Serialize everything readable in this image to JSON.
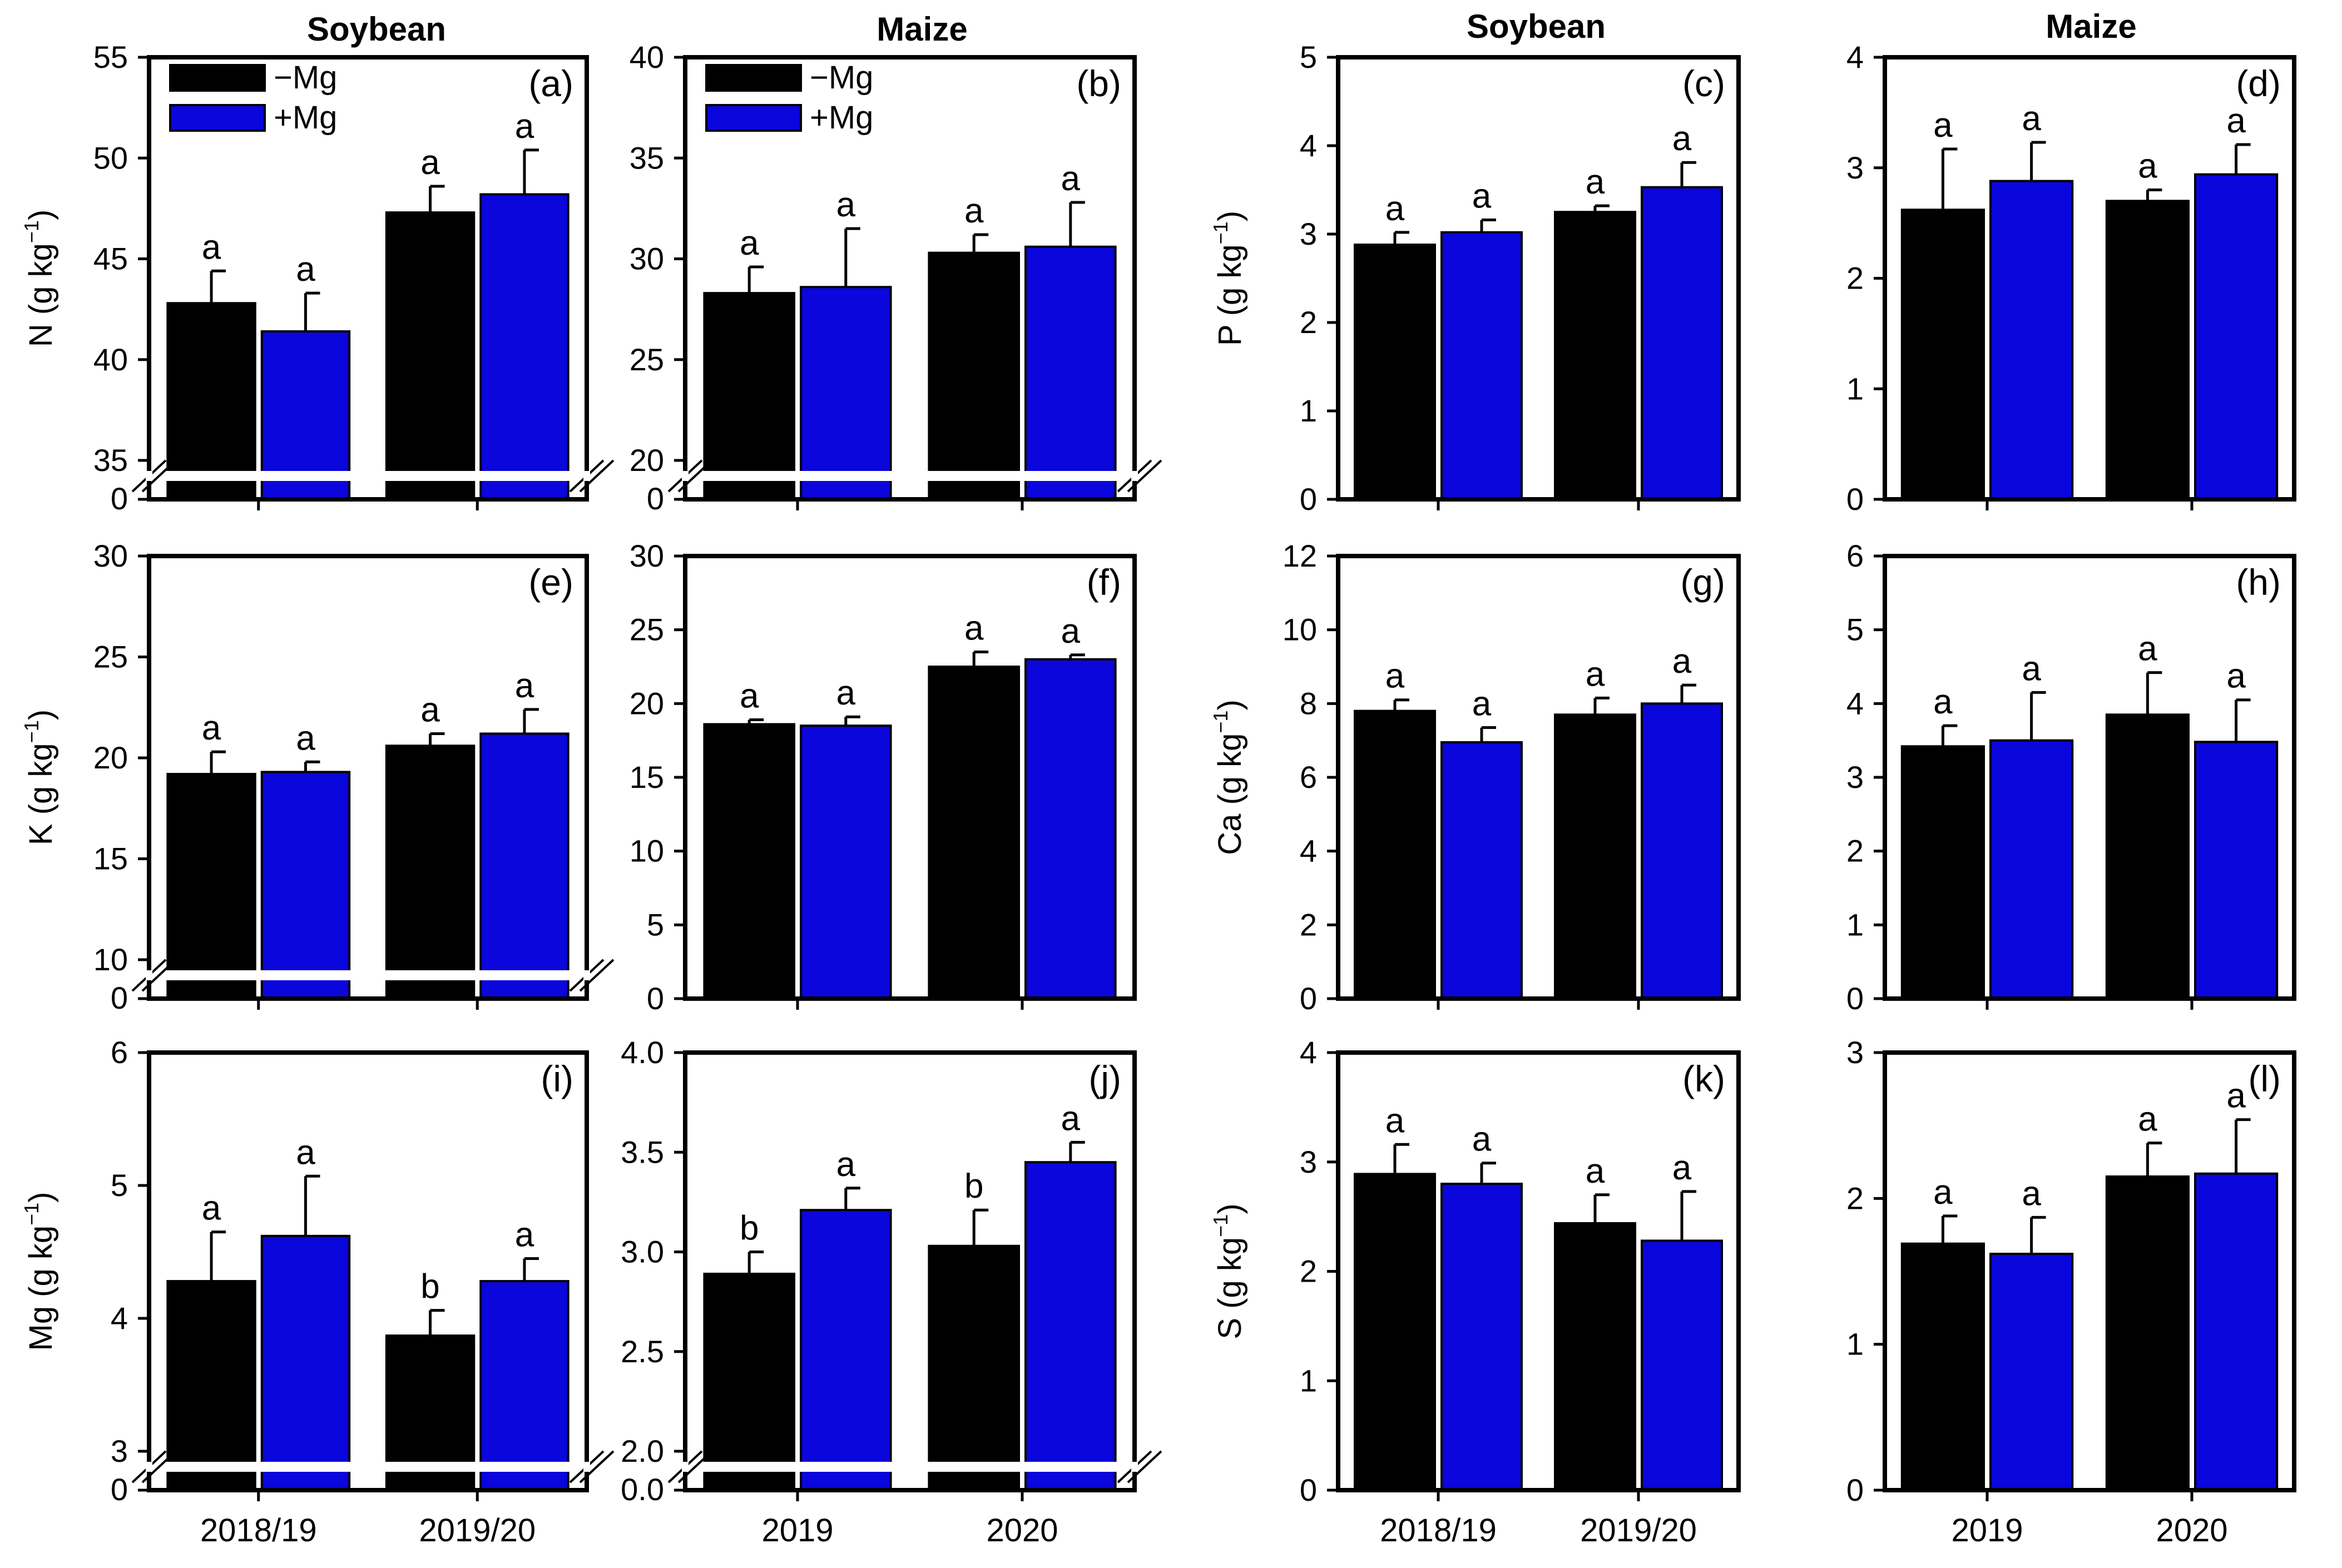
{
  "column_titles": [
    "Soybean",
    "Maize",
    "Soybean",
    "Maize"
  ],
  "colors": {
    "minus_mg": "#000000",
    "plus_mg": "#0a06dc"
  },
  "chart_data": [
    {
      "panel": "(a)",
      "type": "bar",
      "crop": "Soybean",
      "ylabel": "N (g kg",
      "ylabel_sup": "−1",
      "ylabel_close": ")",
      "categories": [
        "2018/19",
        "2019/20"
      ],
      "axis_break": true,
      "ylim": [
        35,
        55
      ],
      "yticks": [
        35,
        40,
        45,
        50,
        55
      ],
      "break_zero_label": "0",
      "legend": true,
      "legend_position": "top-left",
      "series": [
        {
          "name": "−Mg",
          "values": [
            42.8,
            47.3
          ],
          "errors": [
            1.6,
            1.3
          ],
          "letters": [
            "a",
            "a"
          ]
        },
        {
          "name": "+Mg",
          "values": [
            41.4,
            48.2
          ],
          "errors": [
            1.9,
            2.2
          ],
          "letters": [
            "a",
            "a"
          ]
        }
      ]
    },
    {
      "panel": "(b)",
      "type": "bar",
      "crop": "Maize",
      "ylabel": "",
      "ylabel_sup": "",
      "ylabel_close": "",
      "categories": [
        "2019",
        "2020"
      ],
      "axis_break": true,
      "ylim": [
        20,
        40
      ],
      "yticks": [
        20,
        25,
        30,
        35,
        40
      ],
      "break_zero_label": "0",
      "legend": true,
      "legend_position": "top-left",
      "series": [
        {
          "name": "−Mg",
          "values": [
            28.3,
            30.3
          ],
          "errors": [
            1.3,
            0.9
          ],
          "letters": [
            "a",
            "a"
          ]
        },
        {
          "name": "+Mg",
          "values": [
            28.6,
            30.6
          ],
          "errors": [
            2.9,
            2.2
          ],
          "letters": [
            "a",
            "a"
          ]
        }
      ]
    },
    {
      "panel": "(c)",
      "type": "bar",
      "crop": "Soybean",
      "ylabel": "P (g kg",
      "ylabel_sup": "−1",
      "ylabel_close": ")",
      "categories": [
        "2018/19",
        "2019/20"
      ],
      "axis_break": false,
      "ylim": [
        0,
        5
      ],
      "yticks": [
        0,
        1,
        2,
        3,
        4,
        5
      ],
      "legend": false,
      "series": [
        {
          "name": "−Mg",
          "values": [
            2.88,
            3.25
          ],
          "errors": [
            0.14,
            0.07
          ],
          "letters": [
            "a",
            "a"
          ]
        },
        {
          "name": "+Mg",
          "values": [
            3.02,
            3.53
          ],
          "errors": [
            0.14,
            0.28
          ],
          "letters": [
            "a",
            "a"
          ]
        }
      ]
    },
    {
      "panel": "(d)",
      "type": "bar",
      "crop": "Maize",
      "ylabel": "",
      "ylabel_sup": "",
      "ylabel_close": "",
      "categories": [
        "2019",
        "2020"
      ],
      "axis_break": false,
      "ylim": [
        0,
        4
      ],
      "yticks": [
        0,
        1,
        2,
        3,
        4
      ],
      "legend": false,
      "series": [
        {
          "name": "−Mg",
          "values": [
            2.62,
            2.7
          ],
          "errors": [
            0.55,
            0.1
          ],
          "letters": [
            "a",
            "a"
          ]
        },
        {
          "name": "+Mg",
          "values": [
            2.88,
            2.94
          ],
          "errors": [
            0.35,
            0.27
          ],
          "letters": [
            "a",
            "a"
          ]
        }
      ]
    },
    {
      "panel": "(e)",
      "type": "bar",
      "crop": "Soybean",
      "ylabel": "K (g kg",
      "ylabel_sup": "−1",
      "ylabel_close": ")",
      "categories": [
        "2018/19",
        "2019/20"
      ],
      "axis_break": true,
      "ylim": [
        10,
        30
      ],
      "yticks": [
        10,
        15,
        20,
        25,
        30
      ],
      "break_zero_label": "0",
      "legend": false,
      "series": [
        {
          "name": "−Mg",
          "values": [
            19.2,
            20.6
          ],
          "errors": [
            1.1,
            0.6
          ],
          "letters": [
            "a",
            "a"
          ]
        },
        {
          "name": "+Mg",
          "values": [
            19.3,
            21.2
          ],
          "errors": [
            0.5,
            1.2
          ],
          "letters": [
            "a",
            "a"
          ]
        }
      ]
    },
    {
      "panel": "(f)",
      "type": "bar",
      "crop": "Maize",
      "ylabel": "",
      "ylabel_sup": "",
      "ylabel_close": "",
      "categories": [
        "2019",
        "2020"
      ],
      "axis_break": false,
      "ylim": [
        0,
        30
      ],
      "yticks": [
        0,
        5,
        10,
        15,
        20,
        25,
        30
      ],
      "legend": false,
      "series": [
        {
          "name": "−Mg",
          "values": [
            18.6,
            22.5
          ],
          "errors": [
            0.3,
            1.0
          ],
          "letters": [
            "a",
            "a"
          ]
        },
        {
          "name": "+Mg",
          "values": [
            18.5,
            23.0
          ],
          "errors": [
            0.6,
            0.3
          ],
          "letters": [
            "a",
            "a"
          ]
        }
      ]
    },
    {
      "panel": "(g)",
      "type": "bar",
      "crop": "Soybean",
      "ylabel": "Ca (g kg",
      "ylabel_sup": "−1",
      "ylabel_close": ")",
      "categories": [
        "2018/19",
        "2019/20"
      ],
      "axis_break": false,
      "ylim": [
        0,
        12
      ],
      "yticks": [
        0,
        2,
        4,
        6,
        8,
        10,
        12
      ],
      "legend": false,
      "series": [
        {
          "name": "−Mg",
          "values": [
            7.8,
            7.7
          ],
          "errors": [
            0.3,
            0.45
          ],
          "letters": [
            "a",
            "a"
          ]
        },
        {
          "name": "+Mg",
          "values": [
            6.95,
            8.0
          ],
          "errors": [
            0.4,
            0.5
          ],
          "letters": [
            "a",
            "a"
          ]
        }
      ]
    },
    {
      "panel": "(h)",
      "type": "bar",
      "crop": "Maize",
      "ylabel": "",
      "ylabel_sup": "",
      "ylabel_close": "",
      "categories": [
        "2019",
        "2020"
      ],
      "axis_break": false,
      "ylim": [
        0,
        6
      ],
      "yticks": [
        0,
        1,
        2,
        3,
        4,
        5,
        6
      ],
      "legend": false,
      "series": [
        {
          "name": "−Mg",
          "values": [
            3.42,
            3.85
          ],
          "errors": [
            0.28,
            0.57
          ],
          "letters": [
            "a",
            "a"
          ]
        },
        {
          "name": "+Mg",
          "values": [
            3.5,
            3.48
          ],
          "errors": [
            0.65,
            0.57
          ],
          "letters": [
            "a",
            "a"
          ]
        }
      ]
    },
    {
      "panel": "(i)",
      "type": "bar",
      "crop": "Soybean",
      "ylabel": "Mg (g kg",
      "ylabel_sup": "−1",
      "ylabel_close": ")",
      "categories": [
        "2018/19",
        "2019/20"
      ],
      "axis_break": true,
      "ylim": [
        3,
        6
      ],
      "yticks": [
        3,
        4,
        5,
        6
      ],
      "break_zero_label": "0",
      "legend": false,
      "series": [
        {
          "name": "−Mg",
          "values": [
            4.28,
            3.87
          ],
          "errors": [
            0.37,
            0.19
          ],
          "letters": [
            "a",
            "b"
          ]
        },
        {
          "name": "+Mg",
          "values": [
            4.62,
            4.28
          ],
          "errors": [
            0.45,
            0.17
          ],
          "letters": [
            "a",
            "a"
          ]
        }
      ]
    },
    {
      "panel": "(j)",
      "type": "bar",
      "crop": "Maize",
      "ylabel": "",
      "ylabel_sup": "",
      "ylabel_close": "",
      "categories": [
        "2019",
        "2020"
      ],
      "axis_break": true,
      "ylim": [
        2.0,
        4.0
      ],
      "yticks": [
        "2.0",
        "2.5",
        "3.0",
        "3.5",
        "4.0"
      ],
      "break_zero_label": "0.0",
      "legend": false,
      "series": [
        {
          "name": "−Mg",
          "values": [
            2.89,
            3.03
          ],
          "errors": [
            0.11,
            0.18
          ],
          "letters": [
            "b",
            "b"
          ]
        },
        {
          "name": "+Mg",
          "values": [
            3.21,
            3.45
          ],
          "errors": [
            0.11,
            0.1
          ],
          "letters": [
            "a",
            "a"
          ]
        }
      ]
    },
    {
      "panel": "(k)",
      "type": "bar",
      "crop": "Soybean",
      "ylabel": "S (g kg",
      "ylabel_sup": "−1",
      "ylabel_close": ")",
      "categories": [
        "2018/19",
        "2019/20"
      ],
      "axis_break": false,
      "ylim": [
        0,
        4
      ],
      "yticks": [
        0,
        1,
        2,
        3,
        4
      ],
      "legend": false,
      "series": [
        {
          "name": "−Mg",
          "values": [
            2.89,
            2.44
          ],
          "errors": [
            0.27,
            0.26
          ],
          "letters": [
            "a",
            "a"
          ]
        },
        {
          "name": "+Mg",
          "values": [
            2.8,
            2.28
          ],
          "errors": [
            0.19,
            0.45
          ],
          "letters": [
            "a",
            "a"
          ]
        }
      ]
    },
    {
      "panel": "(l)",
      "type": "bar",
      "crop": "Maize",
      "ylabel": "",
      "ylabel_sup": "",
      "ylabel_close": "",
      "categories": [
        "2019",
        "2020"
      ],
      "axis_break": false,
      "ylim": [
        0,
        3
      ],
      "yticks": [
        0,
        1,
        2,
        3
      ],
      "legend": false,
      "series": [
        {
          "name": "−Mg",
          "values": [
            1.69,
            2.15
          ],
          "errors": [
            0.19,
            0.23
          ],
          "letters": [
            "a",
            "a"
          ]
        },
        {
          "name": "+Mg",
          "values": [
            1.62,
            2.17
          ],
          "errors": [
            0.25,
            0.37
          ],
          "letters": [
            "a",
            "a"
          ]
        }
      ]
    }
  ]
}
